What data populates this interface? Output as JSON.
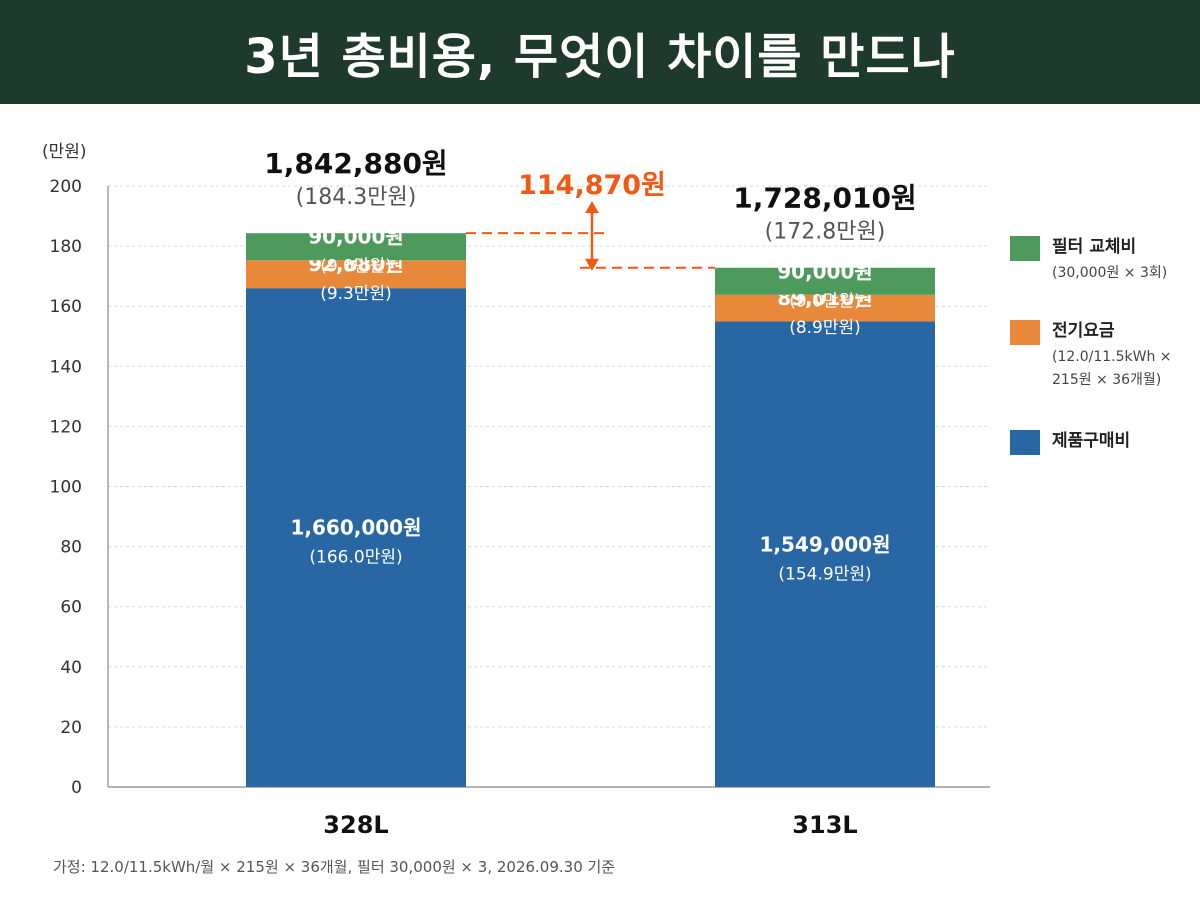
{
  "title": "3년 총비용, 무엇이 차이를 만드나",
  "footnote": "가정: 12.0/11.5kWh/월 × 215원 × 36개월, 필터 30,000원 × 3, 2026.09.30 기준",
  "colors": {
    "header_bg": "#1e3a2c",
    "filter": "#4e9a5c",
    "electricity": "#e8883a",
    "product": "#2867a3",
    "diff": "#f05a14"
  },
  "legend": [
    {
      "name": "필터 교체비",
      "desc": "(30,000원 × 3회)",
      "color": "#4e9a5c"
    },
    {
      "name": "전기요금",
      "desc": "(12.0/11.5kWh ×\n215원 × 36개월)",
      "color": "#e8883a"
    },
    {
      "name": "제품구매비",
      "desc": "",
      "color": "#2867a3"
    }
  ],
  "chart_data": {
    "type": "bar",
    "stacked": true,
    "title": "3년 총비용, 무엇이 차이를 만드나",
    "ylabel": "(만원)",
    "xlabel": "",
    "ylim": [
      0,
      200
    ],
    "yticks": [
      0,
      20,
      40,
      60,
      80,
      100,
      120,
      140,
      160,
      180,
      200
    ],
    "grid": true,
    "legend_position": "right",
    "categories": [
      "328L",
      "313L"
    ],
    "series": [
      {
        "name": "제품구매비",
        "color": "#2867a3",
        "values": [
          166.0,
          154.9
        ],
        "labels": [
          "1,660,000원",
          "1,549,000원"
        ],
        "sublabels": [
          "(166.0만원)",
          "(154.9만원)"
        ]
      },
      {
        "name": "전기요금",
        "color": "#e8883a",
        "values": [
          9.3,
          8.9
        ],
        "labels": [
          "92,880원",
          "89,010원"
        ],
        "sublabels": [
          "(9.3만원)",
          "(8.9만원)"
        ]
      },
      {
        "name": "필터 교체비",
        "color": "#4e9a5c",
        "values": [
          9.0,
          9.0
        ],
        "labels": [
          "90,000원",
          "90,000원"
        ],
        "sublabels": [
          "(9.0만원)",
          "(9.0만원)"
        ]
      }
    ],
    "totals": [
      {
        "value": 184.3,
        "label": "1,842,880원",
        "sublabel": "(184.3만원)"
      },
      {
        "value": 172.8,
        "label": "1,728,010원",
        "sublabel": "(172.8만원)"
      }
    ],
    "difference": {
      "label": "114,870원",
      "from": 184.3,
      "to": 172.8
    }
  }
}
